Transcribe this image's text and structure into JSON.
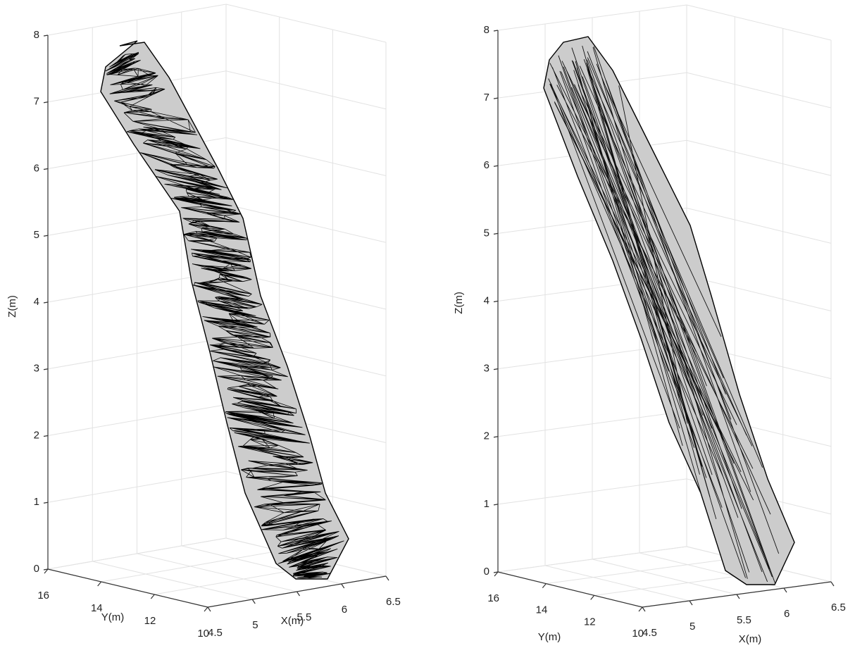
{
  "chart_data": [
    {
      "type": "mesh3d",
      "color": "#cccccc",
      "grid": true,
      "xlabel": "X(m)",
      "ylabel": "Y(m)",
      "zlabel": "Z(m)",
      "xlim": [
        4.5,
        6.5
      ],
      "xticks": [
        4.5,
        5,
        5.5,
        6,
        6.5
      ],
      "ylim": [
        10,
        16
      ],
      "yticks": [
        10,
        12,
        14,
        16
      ],
      "zlim": [
        0,
        8
      ],
      "zticks": [
        0,
        1,
        2,
        3,
        4,
        5,
        6,
        7,
        8
      ]
    },
    {
      "type": "mesh3d",
      "color": "#cccccc",
      "grid": true,
      "xlabel": "X(m)",
      "ylabel": "Y(m)",
      "zlabel": "Z(m)",
      "xlim": [
        4.5,
        6.5
      ],
      "xticks": [
        4.5,
        5,
        5.5,
        6,
        6.5
      ],
      "ylim": [
        10,
        16
      ],
      "yticks": [
        10,
        12,
        14,
        16
      ],
      "zlim": [
        0,
        8
      ],
      "zticks": [
        0,
        1,
        2,
        3,
        4,
        5,
        6,
        7,
        8
      ]
    }
  ]
}
